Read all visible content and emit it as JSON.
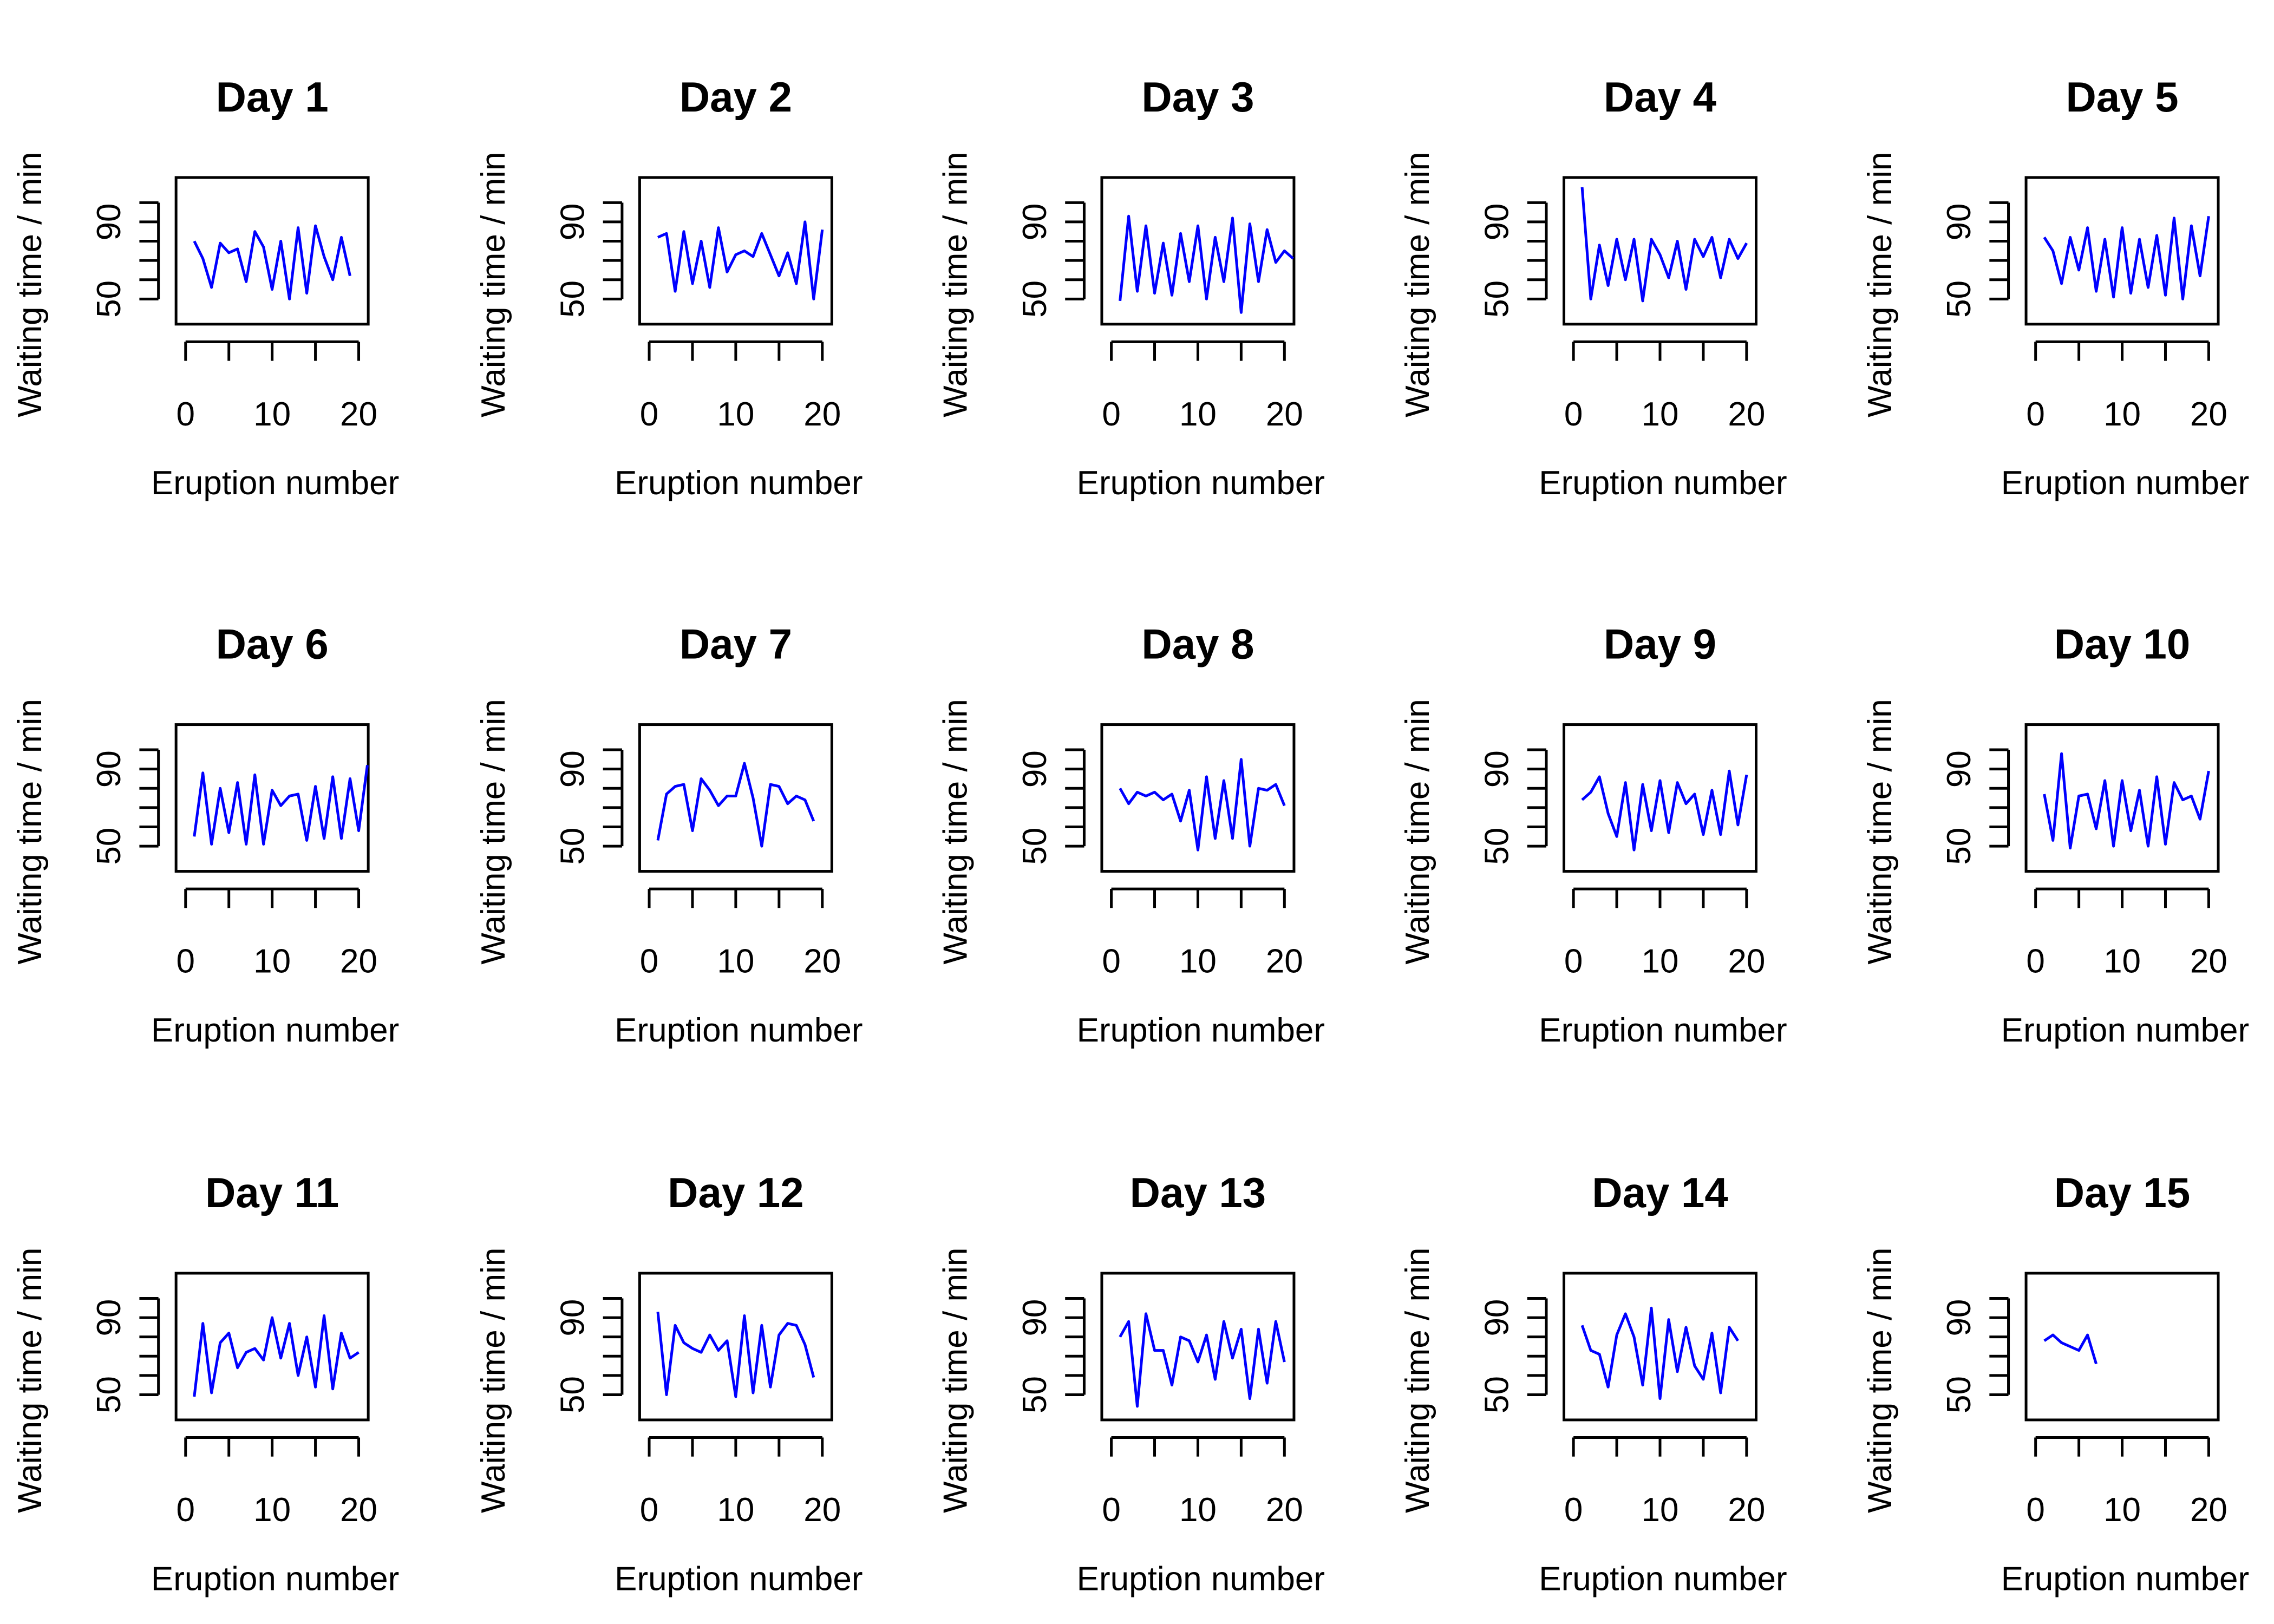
{
  "chart_data": [
    {
      "type": "line",
      "title": "Day 1",
      "xlabel": "Eruption number",
      "ylabel": "Waiting time / min",
      "xlim": [
        0,
        20
      ],
      "ylim": [
        40,
        110
      ],
      "x_ticks": [
        0,
        10,
        20
      ],
      "y_ticks": [
        50,
        90
      ],
      "color": "#0000ff",
      "y": [
        80,
        71,
        56,
        79,
        74,
        76,
        59,
        85,
        77,
        55,
        80,
        50,
        87,
        53,
        88,
        72,
        60,
        82,
        62
      ]
    },
    {
      "type": "line",
      "title": "Day 2",
      "xlabel": "Eruption number",
      "ylabel": "Waiting time / min",
      "xlim": [
        0,
        20
      ],
      "ylim": [
        40,
        110
      ],
      "x_ticks": [
        0,
        10,
        20
      ],
      "y_ticks": [
        50,
        90
      ],
      "color": "#0000ff",
      "y": [
        82,
        84,
        54,
        85,
        58,
        80,
        56,
        87,
        64,
        73,
        75,
        72,
        84,
        73,
        62,
        74,
        58,
        90,
        50,
        86
      ]
    },
    {
      "type": "line",
      "title": "Day 3",
      "xlabel": "Eruption number",
      "ylabel": "Waiting time / min",
      "xlim": [
        0,
        20
      ],
      "ylim": [
        40,
        110
      ],
      "x_ticks": [
        0,
        10,
        20
      ],
      "y_ticks": [
        50,
        90
      ],
      "color": "#0000ff",
      "y": [
        49,
        93,
        54,
        88,
        53,
        79,
        52,
        84,
        59,
        88,
        50,
        82,
        59,
        92,
        43,
        89,
        59,
        86,
        69,
        75,
        71
      ]
    },
    {
      "type": "line",
      "title": "Day 4",
      "xlabel": "Eruption number",
      "ylabel": "Waiting time / min",
      "xlim": [
        0,
        20
      ],
      "ylim": [
        40,
        110
      ],
      "x_ticks": [
        0,
        10,
        20
      ],
      "y_ticks": [
        50,
        90
      ],
      "color": "#0000ff",
      "y": [
        108,
        50,
        78,
        57,
        81,
        60,
        81,
        49,
        81,
        73,
        61,
        80,
        55,
        81,
        72,
        82,
        61,
        81,
        71,
        79
      ]
    },
    {
      "type": "line",
      "title": "Day 5",
      "xlabel": "Eruption number",
      "ylabel": "Waiting time / min",
      "xlim": [
        0,
        20
      ],
      "ylim": [
        40,
        110
      ],
      "x_ticks": [
        0,
        10,
        20
      ],
      "y_ticks": [
        50,
        90
      ],
      "color": "#0000ff",
      "y": [
        82,
        75,
        58,
        82,
        65,
        87,
        54,
        81,
        51,
        87,
        53,
        81,
        56,
        83,
        52,
        92,
        50,
        88,
        62,
        93
      ]
    },
    {
      "type": "line",
      "title": "Day 6",
      "xlabel": "Eruption number",
      "ylabel": "Waiting time / min",
      "xlim": [
        0,
        20
      ],
      "ylim": [
        40,
        110
      ],
      "x_ticks": [
        0,
        10,
        20
      ],
      "y_ticks": [
        50,
        90
      ],
      "color": "#0000ff",
      "y": [
        55,
        88,
        51,
        80,
        57,
        83,
        51,
        87,
        51,
        79,
        71,
        76,
        77,
        53,
        81,
        54,
        86,
        54,
        85,
        58,
        92
      ]
    },
    {
      "type": "line",
      "title": "Day 7",
      "xlabel": "Eruption number",
      "ylabel": "Waiting time / min",
      "xlim": [
        0,
        20
      ],
      "ylim": [
        40,
        110
      ],
      "x_ticks": [
        0,
        10,
        20
      ],
      "y_ticks": [
        50,
        90
      ],
      "color": "#0000ff",
      "y": [
        53,
        77,
        81,
        82,
        58,
        85,
        79,
        71,
        76,
        76,
        93,
        75,
        50,
        82,
        81,
        72,
        76,
        74,
        63
      ]
    },
    {
      "type": "line",
      "title": "Day 8",
      "xlabel": "Eruption number",
      "ylabel": "Waiting time / min",
      "xlim": [
        0,
        20
      ],
      "ylim": [
        40,
        110
      ],
      "x_ticks": [
        0,
        10,
        20
      ],
      "y_ticks": [
        50,
        90
      ],
      "color": "#0000ff",
      "y": [
        80,
        72,
        78,
        76,
        78,
        74,
        77,
        63,
        79,
        48,
        86,
        54,
        84,
        54,
        95,
        50,
        80,
        79,
        82,
        71
      ]
    },
    {
      "type": "line",
      "title": "Day 9",
      "xlabel": "Eruption number",
      "ylabel": "Waiting time / min",
      "xlim": [
        0,
        20
      ],
      "ylim": [
        40,
        110
      ],
      "x_ticks": [
        0,
        10,
        20
      ],
      "y_ticks": [
        50,
        90
      ],
      "color": "#0000ff",
      "y": [
        74,
        78,
        86,
        67,
        55,
        83,
        48,
        82,
        58,
        84,
        57,
        83,
        72,
        77,
        56,
        79,
        56,
        89,
        61,
        87
      ]
    },
    {
      "type": "line",
      "title": "Day 10",
      "xlabel": "Eruption number",
      "ylabel": "Waiting time / min",
      "xlim": [
        0,
        20
      ],
      "ylim": [
        40,
        110
      ],
      "x_ticks": [
        0,
        10,
        20
      ],
      "y_ticks": [
        50,
        90
      ],
      "color": "#0000ff",
      "y": [
        77,
        53,
        98,
        49,
        76,
        77,
        59,
        84,
        50,
        84,
        58,
        79,
        50,
        86,
        51,
        83,
        74,
        76,
        64,
        89
      ]
    },
    {
      "type": "line",
      "title": "Day 11",
      "xlabel": "Eruption number",
      "ylabel": "Waiting time / min",
      "xlim": [
        0,
        20
      ],
      "ylim": [
        40,
        110
      ],
      "x_ticks": [
        0,
        10,
        20
      ],
      "y_ticks": [
        50,
        90
      ],
      "color": "#0000ff",
      "y": [
        49,
        87,
        51,
        77,
        82,
        64,
        72,
        74,
        68,
        90,
        69,
        87,
        60,
        80,
        54,
        91,
        53,
        82,
        69,
        72
      ]
    },
    {
      "type": "line",
      "title": "Day 12",
      "xlabel": "Eruption number",
      "ylabel": "Waiting time / min",
      "xlim": [
        0,
        20
      ],
      "ylim": [
        40,
        110
      ],
      "x_ticks": [
        0,
        10,
        20
      ],
      "y_ticks": [
        50,
        90
      ],
      "color": "#0000ff",
      "y": [
        93,
        50,
        86,
        77,
        74,
        72,
        81,
        73,
        78,
        49,
        91,
        51,
        86,
        54,
        81,
        87,
        86,
        76,
        59
      ]
    },
    {
      "type": "line",
      "title": "Day 13",
      "xlabel": "Eruption number",
      "ylabel": "Waiting time / min",
      "xlim": [
        0,
        20
      ],
      "ylim": [
        40,
        110
      ],
      "x_ticks": [
        0,
        10,
        20
      ],
      "y_ticks": [
        50,
        90
      ],
      "color": "#0000ff",
      "y": [
        80,
        88,
        44,
        92,
        73,
        73,
        55,
        80,
        78,
        67,
        81,
        58,
        88,
        69,
        84,
        48,
        84,
        56,
        88,
        67
      ]
    },
    {
      "type": "line",
      "title": "Day 14",
      "xlabel": "Eruption number",
      "ylabel": "Waiting time / min",
      "xlim": [
        0,
        20
      ],
      "ylim": [
        40,
        110
      ],
      "x_ticks": [
        0,
        10,
        20
      ],
      "y_ticks": [
        50,
        90
      ],
      "color": "#0000ff",
      "y": [
        86,
        73,
        71,
        54,
        81,
        92,
        80,
        55,
        95,
        48,
        89,
        62,
        85,
        65,
        58,
        82,
        51,
        85,
        78
      ]
    },
    {
      "type": "line",
      "title": "Day 15",
      "xlabel": "Eruption number",
      "ylabel": "Waiting time / min",
      "xlim": [
        0,
        20
      ],
      "ylim": [
        40,
        110
      ],
      "x_ticks": [
        0,
        10,
        20
      ],
      "y_ticks": [
        50,
        90
      ],
      "color": "#0000ff",
      "y": [
        78,
        81,
        77,
        75,
        73,
        81,
        66
      ]
    }
  ]
}
